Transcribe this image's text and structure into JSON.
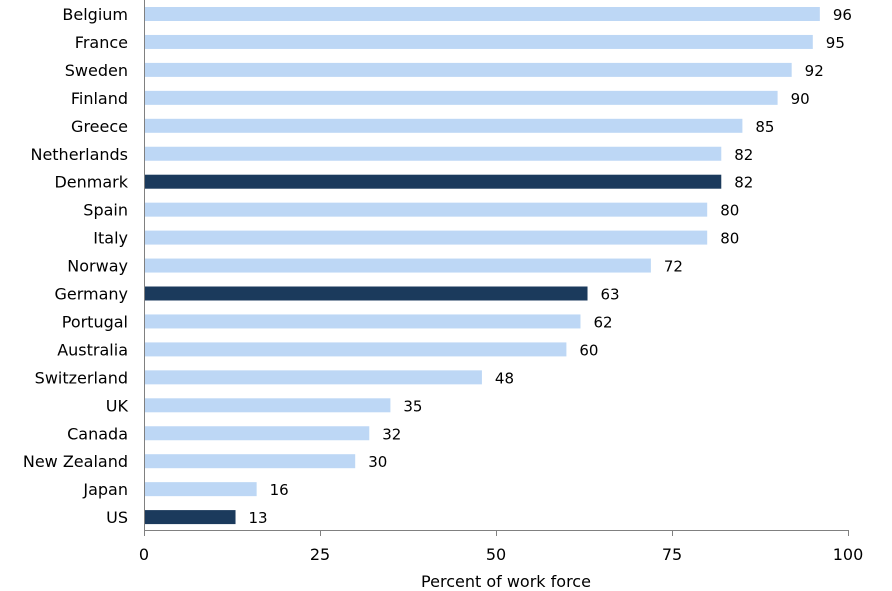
{
  "chart_data": {
    "type": "bar",
    "orientation": "horizontal",
    "categories": [
      "Belgium",
      "France",
      "Sweden",
      "Finland",
      "Greece",
      "Netherlands",
      "Denmark",
      "Spain",
      "Italy",
      "Norway",
      "Germany",
      "Portugal",
      "Australia",
      "Switzerland",
      "UK",
      "Canada",
      "New Zealand",
      "Japan",
      "US"
    ],
    "values": [
      96,
      95,
      92,
      90,
      85,
      82,
      82,
      80,
      80,
      72,
      63,
      62,
      60,
      48,
      35,
      32,
      30,
      16,
      13
    ],
    "highlighted": [
      "Denmark",
      "Germany",
      "US"
    ],
    "colors": {
      "default": "#bdd7f5",
      "highlight": "#1b3a5c",
      "axis": "#808080"
    },
    "xlabel": "Percent of work force",
    "xlim": [
      0,
      100
    ],
    "xticks": [
      0,
      25,
      50,
      75,
      100
    ],
    "grid": false,
    "data_labels": true
  }
}
